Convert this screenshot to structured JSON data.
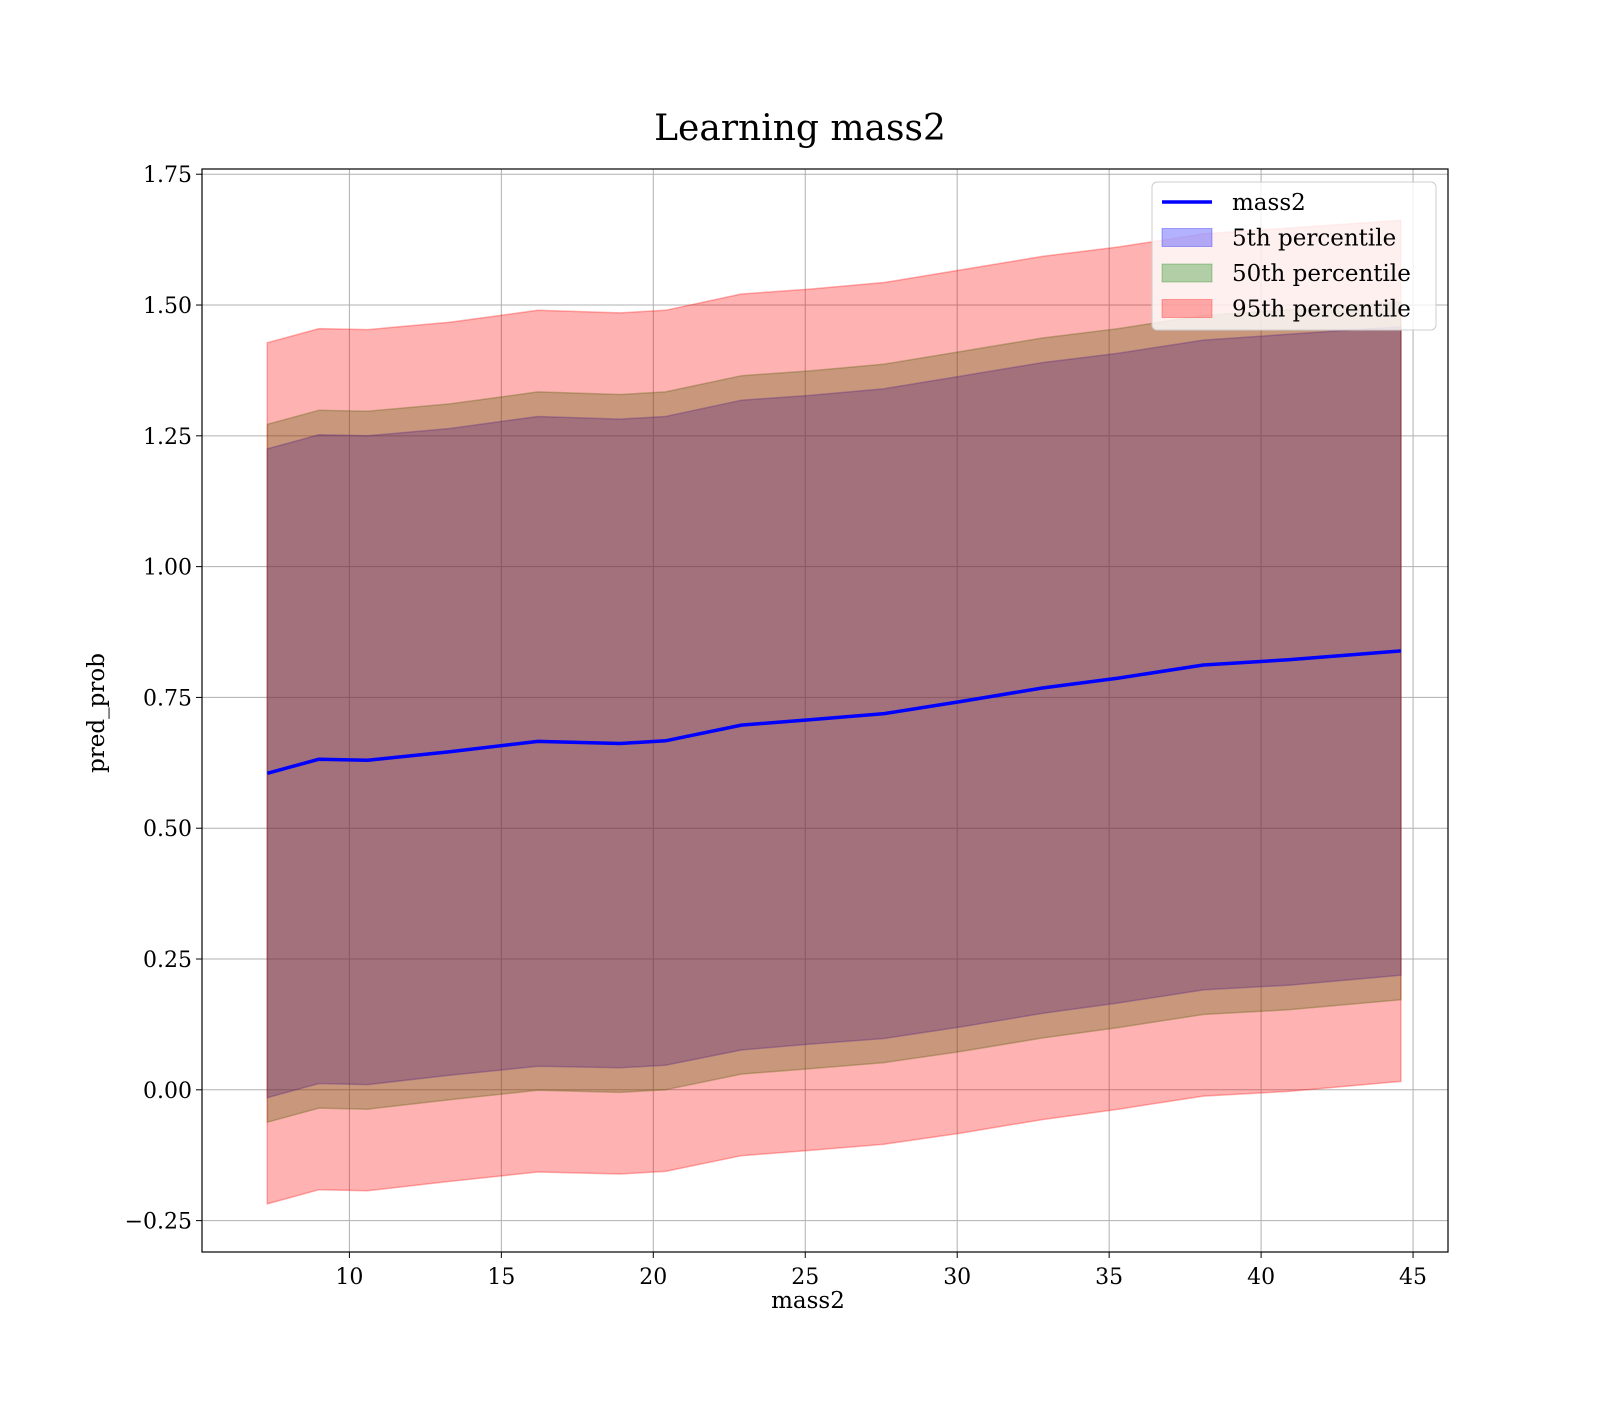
{
  "chart_data": {
    "type": "line",
    "title": "Learning mass2",
    "xlabel": "mass2",
    "ylabel": "pred_prob",
    "xlim": [
      5.15,
      46.15
    ],
    "ylim": [
      -0.31,
      1.76
    ],
    "xticks": [
      10,
      15,
      20,
      25,
      30,
      35,
      40,
      45
    ],
    "xtick_labels": [
      "10",
      "15",
      "20",
      "25",
      "30",
      "35",
      "40",
      "45"
    ],
    "yticks": [
      -0.25,
      0,
      0.25,
      0.5,
      0.75,
      1.0,
      1.25,
      1.5,
      1.75
    ],
    "ytick_labels": [
      "−0.25",
      "0.00",
      "0.25",
      "0.50",
      "0.75",
      "1.00",
      "1.25",
      "1.50",
      "1.75"
    ],
    "grid": true,
    "legend_position": "top-right",
    "x": [
      7.3,
      9.0,
      10.6,
      13.3,
      16.2,
      18.9,
      20.4,
      22.9,
      25.1,
      27.6,
      30.1,
      32.8,
      35.3,
      38.1,
      40.9,
      44.6
    ],
    "series": [
      {
        "name": "mass2",
        "kind": "line",
        "color": "#0000ff",
        "values": [
          0.605,
          0.632,
          0.63,
          0.646,
          0.666,
          0.662,
          0.667,
          0.697,
          0.707,
          0.719,
          0.742,
          0.768,
          0.787,
          0.812,
          0.822,
          0.839
        ]
      },
      {
        "name": "5th percentile",
        "kind": "band",
        "color": "#0000ff",
        "lower": [
          -0.015,
          0.012,
          0.01,
          0.028,
          0.045,
          0.042,
          0.047,
          0.076,
          0.087,
          0.098,
          0.12,
          0.146,
          0.166,
          0.191,
          0.2,
          0.219
        ],
        "upper": [
          1.225,
          1.252,
          1.25,
          1.264,
          1.287,
          1.282,
          1.287,
          1.318,
          1.327,
          1.34,
          1.364,
          1.39,
          1.408,
          1.433,
          1.444,
          1.459
        ]
      },
      {
        "name": "50th percentile",
        "kind": "band",
        "color": "#008000",
        "lower": [
          -0.062,
          -0.035,
          -0.037,
          -0.019,
          -0.001,
          -0.005,
          0.0,
          0.03,
          0.04,
          0.052,
          0.073,
          0.099,
          0.119,
          0.144,
          0.153,
          0.172
        ],
        "upper": [
          1.272,
          1.299,
          1.297,
          1.311,
          1.334,
          1.329,
          1.334,
          1.365,
          1.374,
          1.387,
          1.411,
          1.437,
          1.455,
          1.48,
          1.491,
          1.506
        ]
      },
      {
        "name": "95th percentile",
        "kind": "band",
        "color": "#ff0000",
        "lower": [
          -0.218,
          -0.191,
          -0.193,
          -0.175,
          -0.157,
          -0.161,
          -0.156,
          -0.126,
          -0.116,
          -0.104,
          -0.083,
          -0.057,
          -0.037,
          -0.012,
          -0.003,
          0.016
        ],
        "upper": [
          1.428,
          1.455,
          1.453,
          1.467,
          1.49,
          1.485,
          1.49,
          1.521,
          1.53,
          1.543,
          1.567,
          1.593,
          1.611,
          1.636,
          1.647,
          1.662
        ]
      }
    ]
  }
}
